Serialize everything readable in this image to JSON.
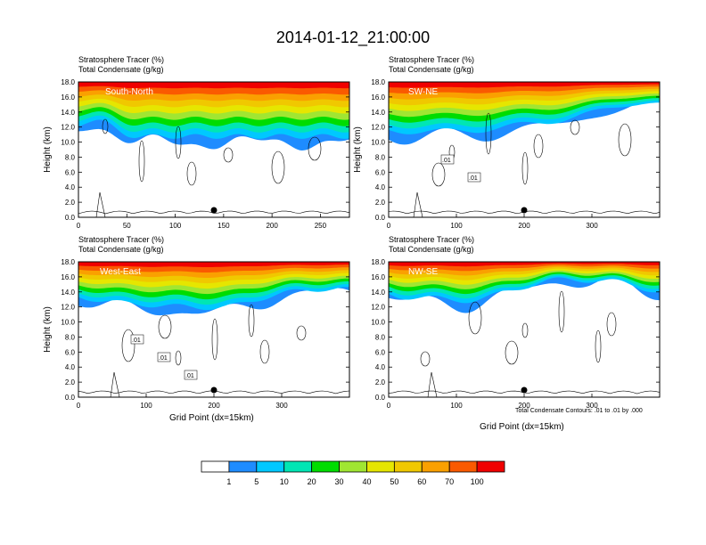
{
  "title": "2014-01-12_21:00:00",
  "panel_header_line1": "Stratosphere Tracer   (%)",
  "panel_header_line2": "Total Condensate   (g/kg)",
  "contour_note": "Total Condensate Contours: .01 to .01 by .000",
  "colors": {
    "levels": [
      "#ffffff",
      "#1e8cff",
      "#00c8ff",
      "#00e6b4",
      "#00dc00",
      "#a0e632",
      "#e6e600",
      "#f0c800",
      "#faa000",
      "#fa5a00",
      "#f00000"
    ],
    "contour": "#000000"
  },
  "colorbar_labels": [
    "1",
    "5",
    "10",
    "20",
    "30",
    "40",
    "50",
    "60",
    "70",
    "100"
  ],
  "chart_data": [
    {
      "type": "heatmap",
      "direction_label": "South-North",
      "ylabel": "Height (km)",
      "xlabel": "",
      "ylim": [
        0,
        18
      ],
      "xlim": [
        0,
        280
      ],
      "xticks": [
        "0",
        "50",
        "100",
        "150",
        "200",
        "250"
      ],
      "yticks": [
        "0.0",
        "2.0",
        "4.0",
        "6.0",
        "8.0",
        "10.0",
        "12.0",
        "14.0",
        "16.0",
        "18.0"
      ],
      "marker_x": 140,
      "contour_labels": []
    },
    {
      "type": "heatmap",
      "direction_label": "SW-NE",
      "ylabel": "Height (km)",
      "xlabel": "",
      "ylim": [
        0,
        18
      ],
      "xlim": [
        0,
        400
      ],
      "xticks": [
        "0",
        "100",
        "200",
        "300"
      ],
      "yticks": [
        "0.0",
        "2.0",
        "4.0",
        "6.0",
        "8.0",
        "10.0",
        "12.0",
        "14.0",
        "16.0",
        "18.0"
      ],
      "marker_x": 200,
      "contour_labels": [
        ".01",
        ".01"
      ]
    },
    {
      "type": "heatmap",
      "direction_label": "West-East",
      "ylabel": "Height (km)",
      "xlabel": "Grid Point (dx=15km)",
      "ylim": [
        0,
        18
      ],
      "xlim": [
        0,
        400
      ],
      "xticks": [
        "0",
        "100",
        "200",
        "300"
      ],
      "yticks": [
        "0.0",
        "2.0",
        "4.0",
        "6.0",
        "8.0",
        "10.0",
        "12.0",
        "14.0",
        "16.0",
        "18.0"
      ],
      "marker_x": 200,
      "contour_labels": [
        ".01",
        ".01",
        ".01"
      ]
    },
    {
      "type": "heatmap",
      "direction_label": "NW-SE",
      "ylabel": "",
      "xlabel": "Grid Point (dx=15km)",
      "ylim": [
        0,
        18
      ],
      "xlim": [
        0,
        400
      ],
      "xticks": [
        "0",
        "100",
        "200",
        "300"
      ],
      "yticks": [
        "0.0",
        "2.0",
        "4.0",
        "6.0",
        "8.0",
        "10.0",
        "12.0",
        "14.0",
        "16.0",
        "18.0"
      ],
      "marker_x": 200,
      "contour_labels": []
    }
  ]
}
